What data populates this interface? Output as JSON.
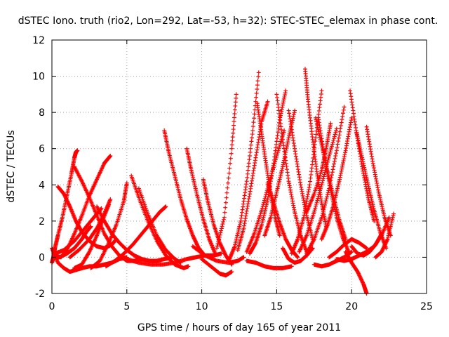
{
  "chart_data": {
    "type": "scatter",
    "title": "dSTEC Iono. truth (rio2, Lon=292, Lat=-53, h=32): STEC-STEC_elemax in phase cont.",
    "xlabel": "GPS time / hours of day 165 of year 2011",
    "ylabel": "dSTEC  / TECUs",
    "xlim": [
      0,
      25
    ],
    "ylim": [
      -2,
      12
    ],
    "xticks": [
      0,
      5,
      10,
      15,
      20,
      25
    ],
    "yticks": [
      -2,
      0,
      2,
      4,
      6,
      8,
      10,
      12
    ],
    "grid": true,
    "marker": "+",
    "color": "#ff0000",
    "series": [
      {
        "x": [
          0.0,
          0.4,
          0.8,
          1.2,
          1.6,
          2.0,
          2.5,
          3.0,
          3.5,
          4.0,
          4.5,
          5.0
        ],
        "y": [
          0.5,
          -0.3,
          -0.6,
          -0.8,
          -0.7,
          -0.6,
          -0.5,
          -0.5,
          -0.4,
          -0.3,
          -0.1,
          0.0
        ]
      },
      {
        "x": [
          0.0,
          0.1,
          0.2,
          0.4,
          0.7,
          1.0,
          1.3,
          1.5,
          1.6,
          1.7
        ],
        "y": [
          -0.3,
          0.0,
          0.5,
          1.2,
          2.2,
          3.4,
          4.6,
          5.5,
          5.8,
          5.9
        ]
      },
      {
        "x": [
          0.1,
          0.5,
          1.0,
          1.5,
          2.0,
          2.3,
          2.6
        ],
        "y": [
          0.0,
          0.0,
          0.2,
          0.5,
          1.0,
          1.4,
          1.7
        ]
      },
      {
        "x": [
          0.4,
          0.8,
          1.2,
          1.6,
          2.0,
          2.5,
          3.0,
          3.5,
          4.0,
          4.3
        ],
        "y": [
          3.9,
          3.5,
          2.8,
          2.0,
          1.4,
          0.9,
          0.6,
          0.5,
          0.7,
          1.0
        ]
      },
      {
        "x": [
          0.2,
          0.6,
          1.0,
          1.5,
          2.0,
          2.5,
          3.0,
          3.5,
          3.9
        ],
        "y": [
          0.1,
          0.0,
          0.4,
          1.3,
          2.3,
          3.4,
          4.3,
          5.2,
          5.6
        ]
      },
      {
        "x": [
          1.5,
          2.0,
          2.5,
          3.0,
          3.5,
          4.0,
          4.5,
          5.0,
          5.5,
          6.0
        ],
        "y": [
          5.0,
          4.2,
          3.3,
          2.3,
          1.3,
          0.6,
          0.1,
          -0.2,
          -0.2,
          -0.1
        ]
      },
      {
        "x": [
          1.5,
          2.0,
          2.5,
          3.0,
          3.4,
          3.8
        ],
        "y": [
          -0.6,
          -0.4,
          0.3,
          1.2,
          2.1,
          2.9
        ]
      },
      {
        "x": [
          0.2,
          0.8,
          1.5,
          2.2,
          2.8,
          3.3
        ],
        "y": [
          0.2,
          0.4,
          0.9,
          1.6,
          2.2,
          2.7
        ]
      },
      {
        "x": [
          1.2,
          1.8,
          2.5,
          3.0,
          3.5,
          3.9
        ],
        "y": [
          0.0,
          0.4,
          1.0,
          1.6,
          2.4,
          3.2
        ]
      },
      {
        "x": [
          2.6,
          3.2,
          3.8,
          4.3,
          4.8,
          5.0
        ],
        "y": [
          -0.6,
          -0.2,
          0.8,
          1.8,
          3.1,
          4.1
        ]
      },
      {
        "x": [
          3.0,
          3.5,
          4.0,
          4.5,
          5.0,
          5.5,
          6.0,
          6.5,
          7.0,
          7.5,
          8.0
        ],
        "y": [
          2.8,
          2.0,
          1.3,
          0.8,
          0.4,
          0.1,
          -0.1,
          -0.2,
          -0.2,
          -0.1,
          0.0
        ]
      },
      {
        "x": [
          3.6,
          4.2,
          4.8,
          5.4,
          6.0,
          6.6,
          7.2,
          7.6
        ],
        "y": [
          -0.5,
          -0.2,
          0.2,
          0.7,
          1.3,
          1.9,
          2.5,
          2.8
        ]
      },
      {
        "x": [
          5.3,
          5.8,
          6.4,
          7.0,
          7.6,
          8.2,
          8.8,
          9.1
        ],
        "y": [
          4.5,
          3.3,
          2.0,
          0.9,
          0.1,
          -0.4,
          -0.6,
          -0.5
        ]
      },
      {
        "x": [
          5.8,
          6.4,
          7.0,
          7.6,
          8.2,
          8.6
        ],
        "y": [
          3.8,
          2.4,
          1.2,
          0.4,
          -0.1,
          -0.3
        ]
      },
      {
        "x": [
          5.0,
          5.8,
          6.6,
          7.4,
          8.2,
          9.0,
          9.6,
          10.2,
          10.8,
          11.3
        ],
        "y": [
          -0.1,
          -0.3,
          -0.4,
          -0.4,
          -0.3,
          -0.1,
          0.0,
          0.1,
          0.1,
          0.2
        ]
      },
      {
        "x": [
          7.5,
          7.8,
          8.2,
          8.6,
          9.0,
          9.4,
          9.8,
          10.2
        ],
        "y": [
          7.0,
          5.8,
          4.5,
          3.2,
          2.1,
          1.2,
          0.5,
          0.1
        ]
      },
      {
        "x": [
          9.0,
          9.3,
          9.7,
          10.1,
          10.5,
          10.9
        ],
        "y": [
          6.0,
          4.8,
          3.4,
          2.1,
          1.0,
          0.2
        ]
      },
      {
        "x": [
          10.1,
          10.4,
          10.8,
          11.2,
          11.6,
          12.0
        ],
        "y": [
          4.3,
          3.1,
          1.8,
          0.8,
          0.1,
          -0.4
        ]
      },
      {
        "x": [
          10.0,
          10.6,
          11.2,
          11.6,
          12.0
        ],
        "y": [
          -0.1,
          -0.5,
          -0.9,
          -1.0,
          -0.8
        ]
      },
      {
        "x": [
          9.4,
          10.2,
          11.0,
          11.8,
          12.4,
          12.8
        ],
        "y": [
          0.6,
          0.1,
          -0.2,
          -0.3,
          -0.2,
          0.0
        ]
      },
      {
        "x": [
          11.0,
          11.5,
          12.0,
          12.3
        ],
        "y": [
          0.5,
          2.2,
          6.0,
          9.0
        ]
      },
      {
        "x": [
          11.8,
          12.2,
          12.6,
          13.0,
          13.4,
          13.8
        ],
        "y": [
          -0.2,
          0.6,
          2.0,
          4.2,
          7.0,
          10.2
        ]
      },
      {
        "x": [
          12.4,
          12.8,
          13.2,
          13.6,
          14.0,
          14.4
        ],
        "y": [
          0.4,
          1.6,
          3.5,
          5.5,
          7.5,
          8.6
        ]
      },
      {
        "x": [
          13.2,
          13.6,
          14.0,
          14.4,
          14.8,
          15.2,
          15.6
        ],
        "y": [
          0.2,
          0.8,
          1.8,
          3.2,
          5.2,
          7.6,
          9.2
        ]
      },
      {
        "x": [
          13.0,
          13.5,
          14.0,
          14.5,
          15.0,
          15.5
        ],
        "y": [
          0.3,
          1.3,
          2.6,
          4.1,
          5.6,
          7.0
        ]
      },
      {
        "x": [
          14.2,
          14.6,
          15.0,
          15.4,
          15.8,
          16.2
        ],
        "y": [
          1.2,
          2.2,
          3.6,
          5.0,
          6.6,
          8.1
        ]
      },
      {
        "x": [
          13.7,
          14.0,
          14.3,
          14.6,
          14.9,
          15.2
        ],
        "y": [
          8.5,
          6.8,
          5.1,
          3.5,
          2.2,
          1.2
        ]
      },
      {
        "x": [
          14.4,
          14.8,
          15.2,
          15.6,
          16.0,
          16.4
        ],
        "y": [
          4.1,
          3.0,
          1.9,
          1.0,
          0.4,
          0.0
        ]
      },
      {
        "x": [
          13.0,
          13.6,
          14.2,
          14.8,
          15.4,
          16.0
        ],
        "y": [
          -0.2,
          -0.3,
          -0.5,
          -0.6,
          -0.6,
          -0.5
        ]
      },
      {
        "x": [
          15.0,
          15.4,
          15.8,
          16.2,
          16.6,
          17.0
        ],
        "y": [
          9.0,
          6.5,
          4.2,
          2.5,
          1.2,
          0.3
        ]
      },
      {
        "x": [
          15.8,
          16.2,
          16.6,
          17.0,
          17.4
        ],
        "y": [
          8.1,
          6.0,
          4.0,
          2.3,
          1.0
        ]
      },
      {
        "x": [
          15.4,
          15.8,
          16.2,
          16.6,
          17.0,
          17.4
        ],
        "y": [
          0.5,
          -0.1,
          -0.3,
          -0.2,
          0.1,
          0.5
        ]
      },
      {
        "x": [
          16.0,
          16.4,
          16.8,
          17.2,
          17.6,
          18.0
        ],
        "y": [
          0.2,
          1.0,
          2.2,
          4.0,
          6.6,
          9.2
        ]
      },
      {
        "x": [
          16.9,
          17.1,
          17.4,
          17.7,
          18.0,
          18.3
        ],
        "y": [
          10.4,
          8.6,
          6.5,
          4.6,
          3.0,
          1.7
        ]
      },
      {
        "x": [
          16.5,
          17.0,
          17.5,
          18.0,
          18.5,
          19.0
        ],
        "y": [
          0.3,
          1.2,
          2.5,
          4.0,
          5.6,
          7.1
        ]
      },
      {
        "x": [
          17.0,
          17.5,
          18.0,
          18.5,
          19.0,
          19.5
        ],
        "y": [
          0.2,
          1.0,
          2.2,
          3.8,
          5.9,
          8.3
        ]
      },
      {
        "x": [
          17.6,
          18.0,
          18.4,
          18.8,
          19.2,
          19.6
        ],
        "y": [
          7.7,
          6.2,
          4.7,
          3.3,
          2.0,
          1.0
        ]
      },
      {
        "x": [
          17.8,
          18.2,
          18.6,
          19.0,
          19.4,
          19.8
        ],
        "y": [
          7.6,
          5.5,
          3.7,
          2.2,
          1.1,
          0.3
        ]
      },
      {
        "x": [
          17.5,
          18.0,
          18.5,
          19.0,
          19.5,
          20.0
        ],
        "y": [
          -0.4,
          -0.5,
          -0.4,
          -0.2,
          0.0,
          0.3
        ]
      },
      {
        "x": [
          17.0,
          17.5,
          18.0,
          18.3,
          18.6
        ],
        "y": [
          2.5,
          3.5,
          4.8,
          6.0,
          7.4
        ]
      },
      {
        "x": [
          18.0,
          18.4,
          18.8,
          19.2,
          19.6,
          20.0
        ],
        "y": [
          1.0,
          1.8,
          2.9,
          4.3,
          5.9,
          7.7
        ]
      },
      {
        "x": [
          19.9,
          20.3,
          20.7,
          21.1,
          21.5
        ],
        "y": [
          9.2,
          7.0,
          5.0,
          3.3,
          2.0
        ]
      },
      {
        "x": [
          20.3,
          20.7,
          21.1,
          21.5,
          21.9,
          22.3
        ],
        "y": [
          7.0,
          5.5,
          4.0,
          2.6,
          1.4,
          0.5
        ]
      },
      {
        "x": [
          21.0,
          21.4,
          21.8,
          22.2,
          22.6
        ],
        "y": [
          7.2,
          5.3,
          3.6,
          2.2,
          1.2
        ]
      },
      {
        "x": [
          20.0,
          20.4,
          20.8,
          21.2,
          21.6,
          22.0
        ],
        "y": [
          0.6,
          0.2,
          0.1,
          0.3,
          0.7,
          1.3
        ]
      },
      {
        "x": [
          19.0,
          19.5,
          20.0,
          20.5,
          21.0,
          21.5,
          22.0,
          22.5
        ],
        "y": [
          -0.1,
          -0.2,
          -0.1,
          0.1,
          0.3,
          0.6,
          1.2,
          2.2
        ]
      },
      {
        "x": [
          19.6,
          20.0,
          20.4,
          20.8,
          21.0
        ],
        "y": [
          0.3,
          -0.3,
          -0.8,
          -1.5,
          -2.0
        ]
      },
      {
        "x": [
          21.6,
          22.0,
          22.4,
          22.8
        ],
        "y": [
          0.0,
          0.3,
          1.0,
          2.4
        ]
      },
      {
        "x": [
          18.5,
          19.0,
          19.5,
          20.0,
          20.5,
          21.0
        ],
        "y": [
          0.0,
          0.3,
          0.7,
          1.0,
          0.8,
          0.5
        ]
      }
    ]
  }
}
